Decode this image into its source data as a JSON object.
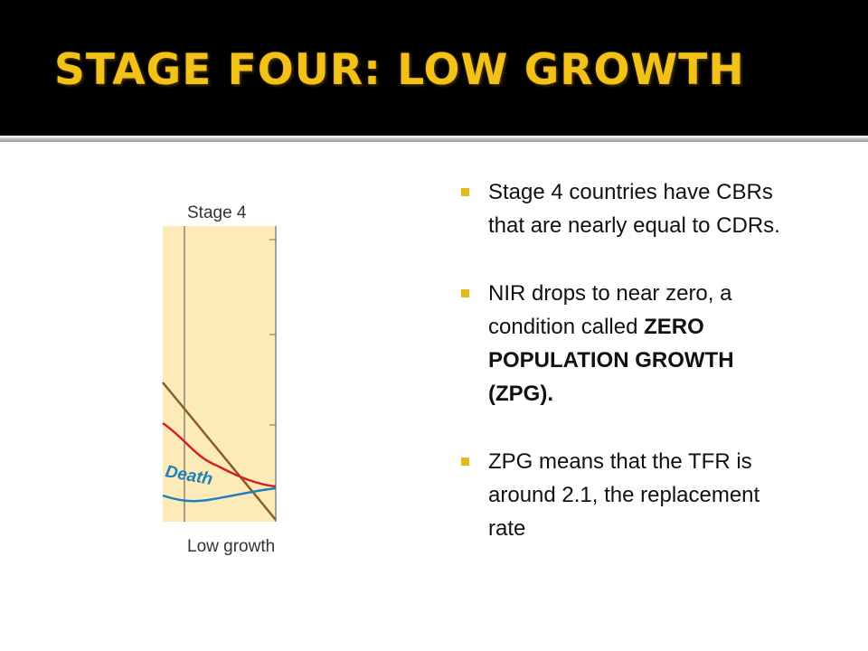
{
  "title": "STAGE FOUR: LOW GROWTH",
  "figure": {
    "heading": "Stage 4",
    "line_label": "Death",
    "caption": "Low growth"
  },
  "bullets": [
    {
      "runs": [
        {
          "text": "Stage 4 countries have CBRs that are nearly equal to CDRs.",
          "bold": false
        }
      ]
    },
    {
      "runs": [
        {
          "text": "NIR drops to near zero, a condition called ",
          "bold": false
        },
        {
          "text": "ZERO POPULATION GROWTH (ZPG).",
          "bold": true
        }
      ]
    },
    {
      "runs": [
        {
          "text": "ZPG means that the TFR is around 2.1, the replacement rate",
          "bold": false
        }
      ]
    }
  ]
}
